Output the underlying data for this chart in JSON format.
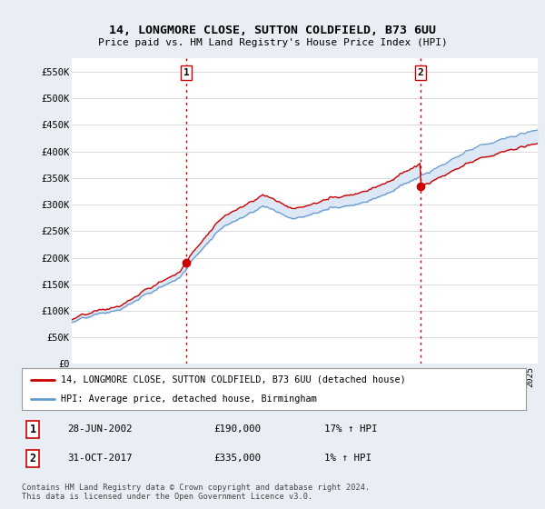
{
  "title": "14, LONGMORE CLOSE, SUTTON COLDFIELD, B73 6UU",
  "subtitle": "Price paid vs. HM Land Registry's House Price Index (HPI)",
  "legend_label_red": "14, LONGMORE CLOSE, SUTTON COLDFIELD, B73 6UU (detached house)",
  "legend_label_blue": "HPI: Average price, detached house, Birmingham",
  "footer": "Contains HM Land Registry data © Crown copyright and database right 2024.\nThis data is licensed under the Open Government Licence v3.0.",
  "ylim": [
    0,
    575000
  ],
  "yticks": [
    0,
    50000,
    100000,
    150000,
    200000,
    250000,
    300000,
    350000,
    400000,
    450000,
    500000,
    550000
  ],
  "ytick_labels": [
    "£0",
    "£50K",
    "£100K",
    "£150K",
    "£200K",
    "£250K",
    "£300K",
    "£350K",
    "£400K",
    "£450K",
    "£500K",
    "£550K"
  ],
  "fig_bg_color": "#e8eef4",
  "plot_bg_color": "#ffffff",
  "red_color": "#cc0000",
  "blue_color": "#6699cc",
  "fill_color": "#dce8f5",
  "transaction1_x": 2002.49,
  "transaction2_x": 2017.83,
  "transaction1_y": 190000,
  "transaction2_y": 335000,
  "xmin": 1995,
  "xmax": 2025.5
}
